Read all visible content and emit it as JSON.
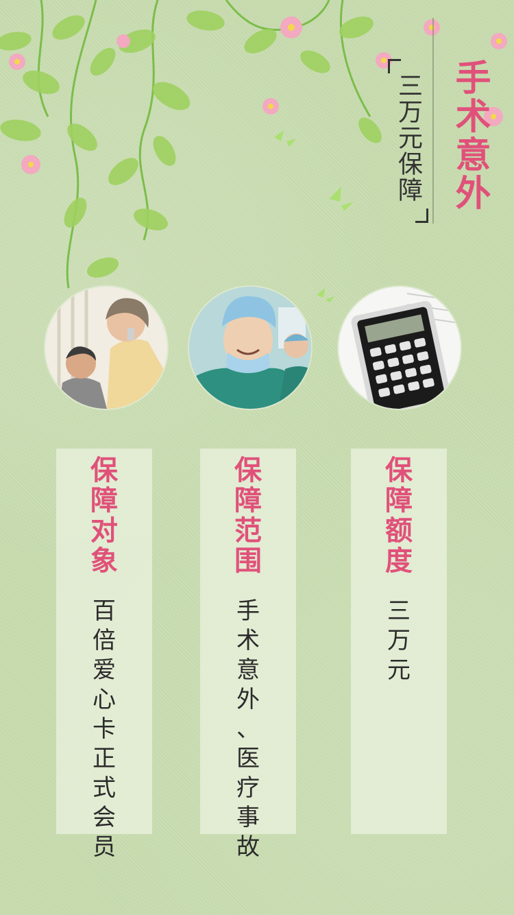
{
  "header": {
    "title": "手术意外",
    "subtitle": "三万元保障"
  },
  "photos": [
    {
      "icon": "elderly-couple-photo"
    },
    {
      "icon": "surgeon-photo"
    },
    {
      "icon": "calculator-photo"
    }
  ],
  "cards": [
    {
      "heading": "保障对象",
      "body": "百倍爱心卡正式会员"
    },
    {
      "heading": "保障范围",
      "body": "手术意外、医疗事故"
    },
    {
      "heading": "保障额度",
      "body": "三万元"
    }
  ],
  "colors": {
    "accent": "#e0517a",
    "background": "#c8dcaf",
    "text": "#2b2b2b"
  }
}
